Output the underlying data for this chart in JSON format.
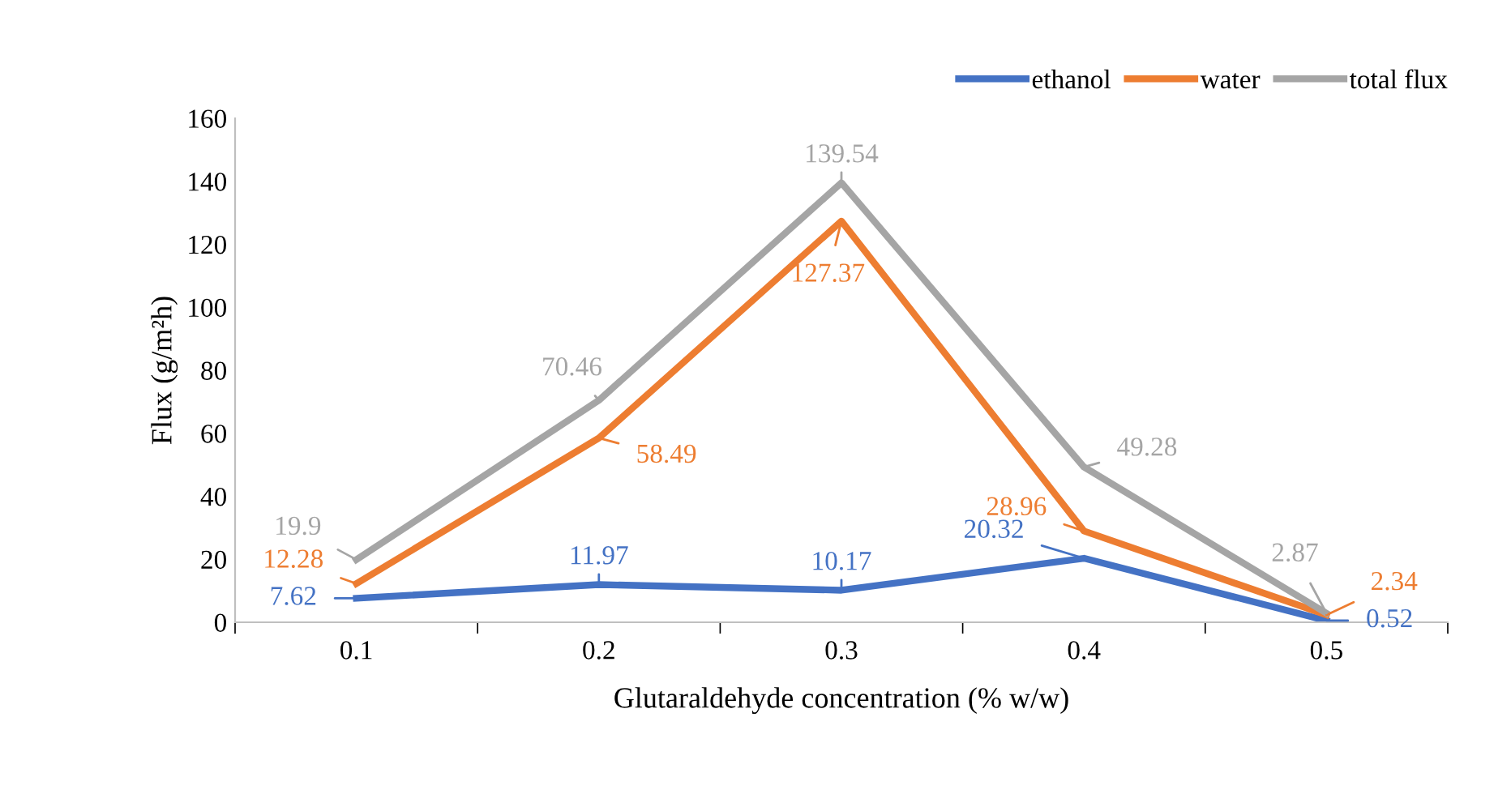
{
  "chart_data": {
    "type": "line",
    "xlabel": "Glutaraldehyde concentration (% w/w)",
    "ylabel": "Flux (g/m²h)",
    "categories": [
      "0.1",
      "0.2",
      "0.3",
      "0.4",
      "0.5"
    ],
    "series": [
      {
        "name": "ethanol",
        "color": "#4472c4",
        "values": [
          7.62,
          11.97,
          10.17,
          20.32,
          0.52
        ]
      },
      {
        "name": "water",
        "color": "#ed7d31",
        "values": [
          12.28,
          58.49,
          127.37,
          28.96,
          2.34
        ]
      },
      {
        "name": "total flux",
        "color": "#a5a5a5",
        "values": [
          19.9,
          70.46,
          139.54,
          49.28,
          2.87
        ]
      }
    ],
    "ylim": [
      0,
      160
    ],
    "yticks": [
      0,
      20,
      40,
      60,
      80,
      100,
      120,
      140,
      160
    ],
    "grid": false,
    "legend": "top right",
    "marker": "none",
    "line_style": "solid",
    "data_labels": true
  }
}
